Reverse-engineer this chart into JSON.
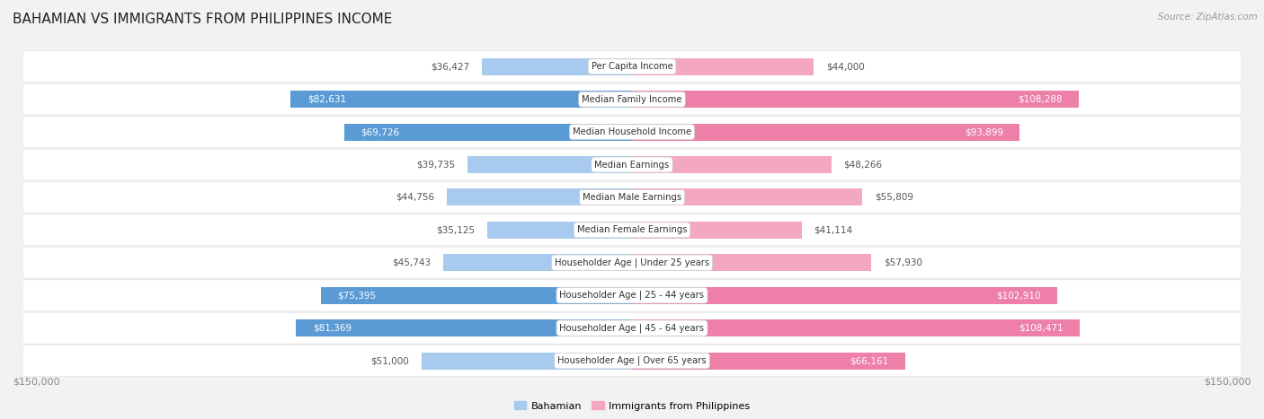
{
  "title": "BAHAMIAN VS IMMIGRANTS FROM PHILIPPINES INCOME",
  "source": "Source: ZipAtlas.com",
  "categories": [
    "Per Capita Income",
    "Median Family Income",
    "Median Household Income",
    "Median Earnings",
    "Median Male Earnings",
    "Median Female Earnings",
    "Householder Age | Under 25 years",
    "Householder Age | 25 - 44 years",
    "Householder Age | 45 - 64 years",
    "Householder Age | Over 65 years"
  ],
  "bahamian_values": [
    36427,
    82631,
    69726,
    39735,
    44756,
    35125,
    45743,
    75395,
    81369,
    51000
  ],
  "philippines_values": [
    44000,
    108288,
    93899,
    48266,
    55809,
    41114,
    57930,
    102910,
    108471,
    66161
  ],
  "bahamian_labels": [
    "$36,427",
    "$82,631",
    "$69,726",
    "$39,735",
    "$44,756",
    "$35,125",
    "$45,743",
    "$75,395",
    "$81,369",
    "$51,000"
  ],
  "philippines_labels": [
    "$44,000",
    "$108,288",
    "$93,899",
    "$48,266",
    "$55,809",
    "$41,114",
    "$57,930",
    "$102,910",
    "$108,471",
    "$66,161"
  ],
  "max_val": 150000,
  "bahamian_color_light": "#a8caee",
  "bahamian_color_dark": "#5b9bd5",
  "philippines_color_light": "#f4a8c0",
  "philippines_color_dark": "#ed7fa8",
  "bg_color": "#f2f2f2",
  "bar_height": 0.52,
  "large_threshold": 65000,
  "label_color_outside": "#555555"
}
